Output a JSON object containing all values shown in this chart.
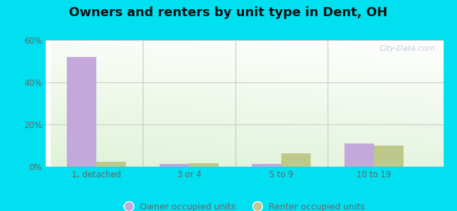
{
  "title": "Owners and renters by unit type in Dent, OH",
  "categories": [
    "1, detached",
    "3 or 4",
    "5 to 9",
    "10 to 19"
  ],
  "owner_values": [
    52,
    1.5,
    1.5,
    11
  ],
  "renter_values": [
    2.5,
    1.8,
    6.5,
    10
  ],
  "owner_color": "#c4a8dc",
  "renter_color": "#bec88a",
  "ylim": [
    0,
    60
  ],
  "yticks": [
    0,
    20,
    40,
    60
  ],
  "ytick_labels": [
    "0%",
    "20%",
    "40%",
    "60%"
  ],
  "outer_background": "#00e0f0",
  "title_fontsize": 13,
  "watermark": "City-Data.com",
  "bar_width": 0.32,
  "legend_owner": "Owner occupied units",
  "legend_renter": "Renter occupied units",
  "tick_color": "#666666",
  "grid_color": "#cccccc"
}
